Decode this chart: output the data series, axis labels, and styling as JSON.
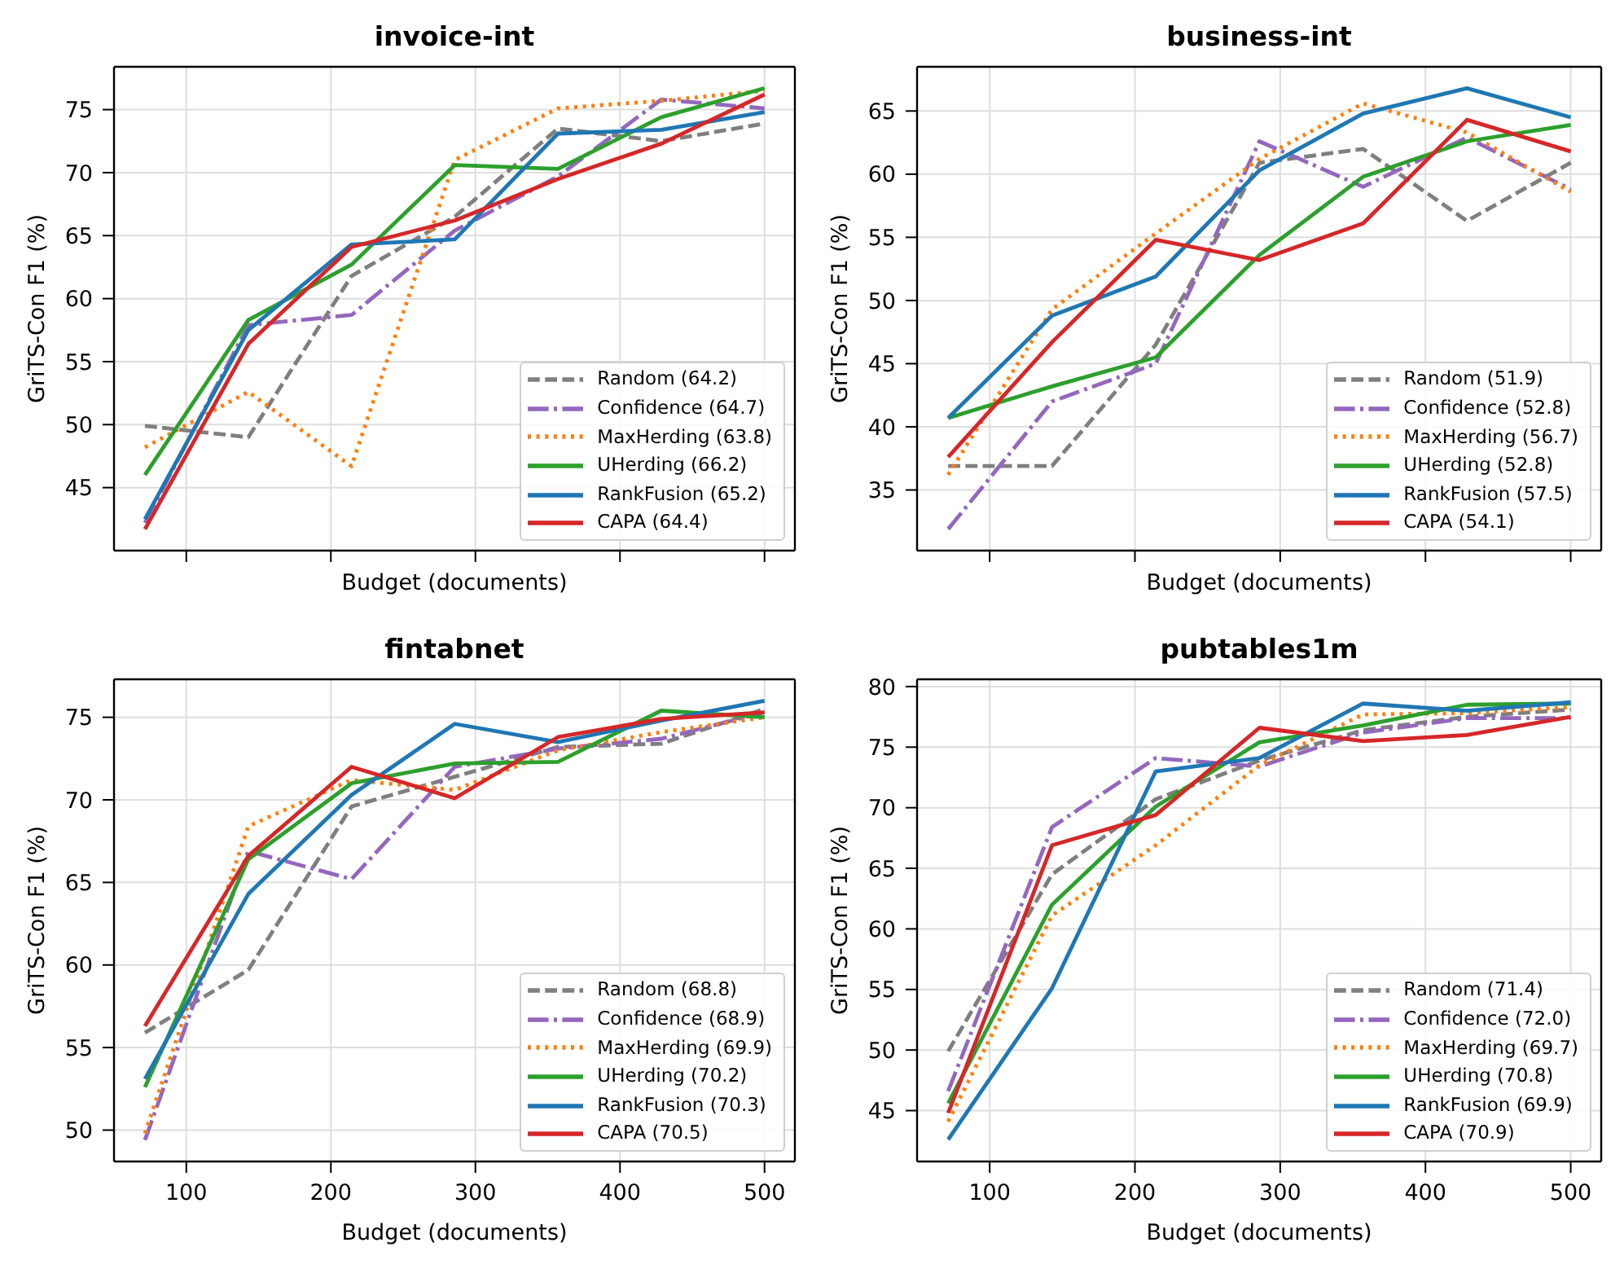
{
  "chart_data": [
    {
      "type": "line",
      "title": "invoice-int",
      "xlabel": "Budget (documents)",
      "ylabel": "GriTS-Con F1 (%)",
      "x": [
        71.4,
        142.9,
        214.3,
        285.7,
        357.1,
        428.6,
        500
      ],
      "xlim": [
        50,
        521
      ],
      "xticks": [
        100,
        200,
        300,
        400,
        500
      ],
      "ylim": [
        40,
        78.4
      ],
      "yticks": [
        45,
        50,
        55,
        60,
        65,
        70,
        75
      ],
      "grid": true,
      "legend": "bottom right",
      "tick_labels": "y",
      "series": [
        {
          "name": "Random (64.2)",
          "color": "#7f7f7f",
          "line_style": "dashed",
          "values": [
            49.9,
            49.0,
            61.8,
            66.5,
            73.5,
            72.5,
            73.9
          ]
        },
        {
          "name": "Confidence (64.7)",
          "color": "#9467bd",
          "line_style": "dashdot",
          "values": [
            42.2,
            57.9,
            58.7,
            65.4,
            69.7,
            75.8,
            75.1
          ]
        },
        {
          "name": "MaxHerding (63.8)",
          "color": "#ff7f0e",
          "line_style": "dotted",
          "values": [
            48.2,
            52.6,
            46.7,
            71.0,
            75.1,
            75.7,
            76.5
          ]
        },
        {
          "name": "UHerding (66.2)",
          "color": "#2ca02c",
          "line_style": "solid",
          "values": [
            46.0,
            58.3,
            62.7,
            70.6,
            70.3,
            74.4,
            76.7
          ]
        },
        {
          "name": "RankFusion (65.2)",
          "color": "#1f77b4",
          "line_style": "solid",
          "values": [
            42.5,
            57.5,
            64.3,
            64.7,
            73.1,
            73.4,
            74.8
          ]
        },
        {
          "name": "CAPA (64.4)",
          "color": "#d62728",
          "line_style": "solid",
          "values": [
            41.7,
            56.4,
            64.1,
            66.2,
            69.5,
            72.3,
            76.2
          ]
        }
      ]
    },
    {
      "type": "line",
      "title": "business-int",
      "xlabel": "Budget (documents)",
      "ylabel": "GriTS-Con F1 (%)",
      "x": [
        71.4,
        142.9,
        214.3,
        285.7,
        357.1,
        428.6,
        500
      ],
      "xlim": [
        50,
        521
      ],
      "xticks": [
        100,
        200,
        300,
        400,
        500
      ],
      "ylim": [
        30.2,
        68.5
      ],
      "yticks": [
        35,
        40,
        45,
        50,
        55,
        60,
        65
      ],
      "grid": true,
      "legend": "bottom right",
      "tick_labels": "y",
      "series": [
        {
          "name": "Random (51.9)",
          "color": "#7f7f7f",
          "line_style": "dashed",
          "values": [
            36.9,
            36.9,
            46.5,
            60.9,
            62.0,
            56.3,
            60.9
          ]
        },
        {
          "name": "Confidence (52.8)",
          "color": "#9467bd",
          "line_style": "dashdot",
          "values": [
            31.9,
            42.0,
            45.0,
            62.6,
            59.0,
            62.9,
            58.8
          ]
        },
        {
          "name": "MaxHerding (56.7)",
          "color": "#ff7f0e",
          "line_style": "dotted",
          "values": [
            36.2,
            49.3,
            55.3,
            61.2,
            65.6,
            63.3,
            58.6
          ]
        },
        {
          "name": "UHerding (52.8)",
          "color": "#2ca02c",
          "line_style": "solid",
          "values": [
            40.7,
            43.2,
            45.5,
            53.6,
            59.8,
            62.6,
            63.9
          ]
        },
        {
          "name": "RankFusion (57.5)",
          "color": "#1f77b4",
          "line_style": "solid",
          "values": [
            40.7,
            48.8,
            51.9,
            60.3,
            64.8,
            66.8,
            64.5
          ]
        },
        {
          "name": "CAPA (54.1)",
          "color": "#d62728",
          "line_style": "solid",
          "values": [
            37.6,
            46.7,
            54.8,
            53.2,
            56.1,
            64.3,
            61.8
          ]
        }
      ]
    },
    {
      "type": "line",
      "title": "fintabnet",
      "xlabel": "Budget (documents)",
      "ylabel": "GriTS-Con F1 (%)",
      "x": [
        71.4,
        142.9,
        214.3,
        285.7,
        357.1,
        428.6,
        500
      ],
      "xlim": [
        50,
        521
      ],
      "xticks": [
        100,
        200,
        300,
        400,
        500
      ],
      "ylim": [
        48.1,
        77.3
      ],
      "yticks": [
        50,
        55,
        60,
        65,
        70,
        75
      ],
      "grid": true,
      "legend": "bottom right",
      "series": [
        {
          "name": "Random (68.8)",
          "color": "#7f7f7f",
          "line_style": "dashed",
          "values": [
            55.9,
            59.7,
            69.6,
            71.4,
            73.2,
            73.4,
            75.5
          ]
        },
        {
          "name": "Confidence (68.9)",
          "color": "#9467bd",
          "line_style": "dashdot",
          "values": [
            49.4,
            66.9,
            65.2,
            72.0,
            73.1,
            73.7,
            75.3
          ]
        },
        {
          "name": "MaxHerding (69.9)",
          "color": "#ff7f0e",
          "line_style": "dotted",
          "values": [
            49.8,
            68.4,
            71.2,
            70.6,
            73.0,
            74.1,
            75.0
          ]
        },
        {
          "name": "UHerding (70.2)",
          "color": "#2ca02c",
          "line_style": "solid",
          "values": [
            52.6,
            66.4,
            71.0,
            72.2,
            72.3,
            75.4,
            75.0
          ]
        },
        {
          "name": "RankFusion (70.3)",
          "color": "#1f77b4",
          "line_style": "solid",
          "values": [
            53.1,
            64.3,
            70.3,
            74.6,
            73.5,
            74.8,
            76.0
          ]
        },
        {
          "name": "CAPA (70.5)",
          "color": "#d62728",
          "line_style": "solid",
          "values": [
            56.3,
            66.6,
            72.0,
            70.1,
            73.8,
            74.9,
            75.3
          ]
        }
      ]
    },
    {
      "type": "line",
      "title": "pubtables1m",
      "xlabel": "Budget (documents)",
      "ylabel": "GriTS-Con F1 (%)",
      "x": [
        71.4,
        142.9,
        214.3,
        285.7,
        357.1,
        428.6,
        500
      ],
      "xlim": [
        50,
        521
      ],
      "xticks": [
        100,
        200,
        300,
        400,
        500
      ],
      "ylim": [
        40.8,
        80.6
      ],
      "yticks": [
        45,
        50,
        55,
        60,
        65,
        70,
        75,
        80
      ],
      "grid": true,
      "legend": "bottom right",
      "series": [
        {
          "name": "Random (71.4)",
          "color": "#7f7f7f",
          "line_style": "dashed",
          "values": [
            49.9,
            64.5,
            70.7,
            73.9,
            76.4,
            77.5,
            78.1
          ]
        },
        {
          "name": "Confidence (72.0)",
          "color": "#9467bd",
          "line_style": "dashdot",
          "values": [
            46.6,
            68.4,
            74.1,
            73.4,
            76.2,
            77.4,
            77.4
          ]
        },
        {
          "name": "MaxHerding (69.7)",
          "color": "#ff7f0e",
          "line_style": "dotted",
          "values": [
            44.1,
            61.1,
            66.9,
            73.5,
            77.7,
            77.8,
            78.3
          ]
        },
        {
          "name": "UHerding (70.8)",
          "color": "#2ca02c",
          "line_style": "solid",
          "values": [
            45.6,
            62.0,
            70.1,
            75.4,
            76.8,
            78.5,
            78.6
          ]
        },
        {
          "name": "RankFusion (69.9)",
          "color": "#1f77b4",
          "line_style": "solid",
          "values": [
            42.6,
            55.1,
            73.0,
            74.1,
            78.6,
            78.0,
            78.7
          ]
        },
        {
          "name": "CAPA (70.9)",
          "color": "#d62728",
          "line_style": "solid",
          "values": [
            44.8,
            66.9,
            69.4,
            76.6,
            75.5,
            76.0,
            77.5
          ]
        }
      ]
    }
  ]
}
